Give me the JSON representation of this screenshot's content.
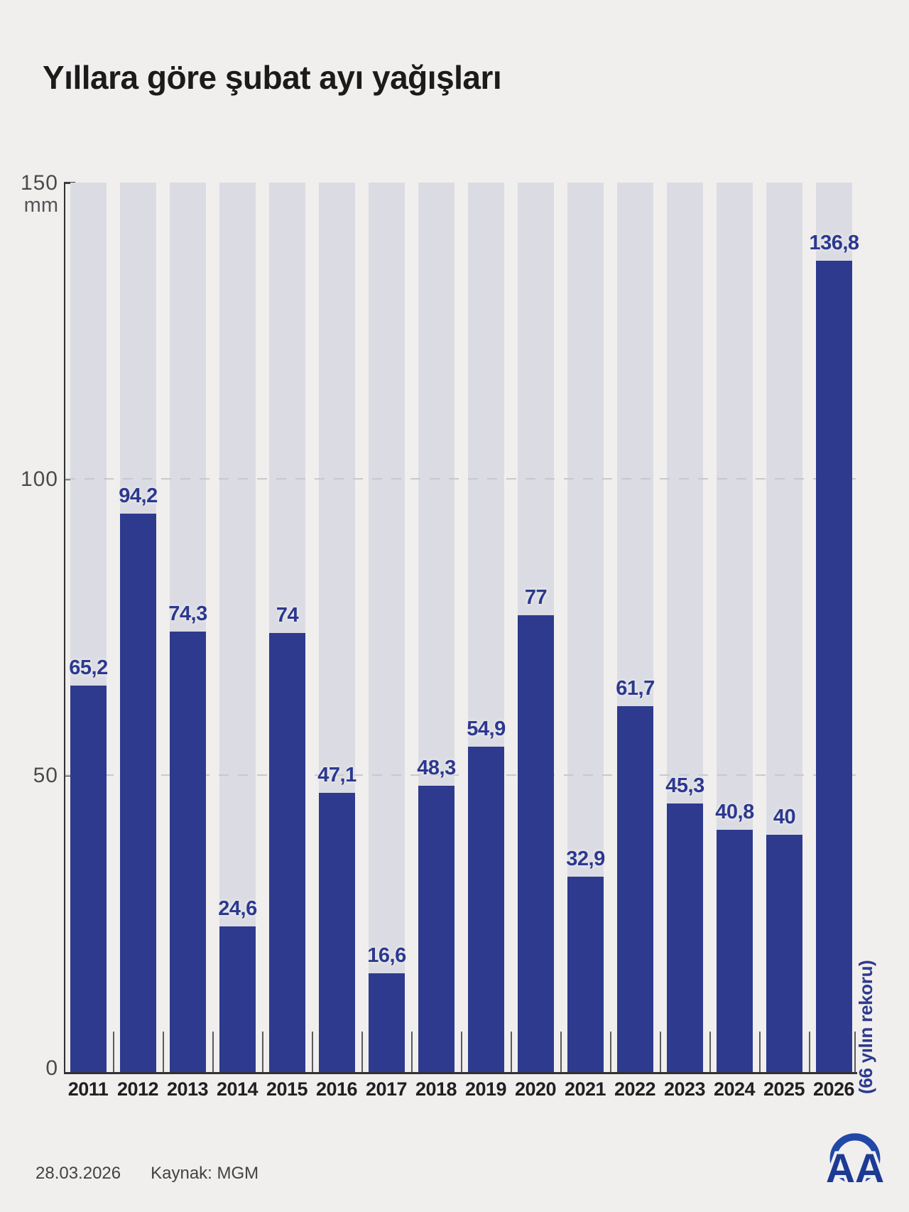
{
  "title": "Yıllara göre şubat ayı yağışları",
  "chart_data": {
    "type": "bar",
    "title": "Yıllara göre şubat ayı yağışları",
    "categories": [
      "2011",
      "2012",
      "2013",
      "2014",
      "2015",
      "2016",
      "2017",
      "2018",
      "2019",
      "2020",
      "2021",
      "2022",
      "2023",
      "2024",
      "2025",
      "2026"
    ],
    "values": [
      65.2,
      94.2,
      74.3,
      24.6,
      74,
      47.1,
      16.6,
      48.3,
      54.9,
      77,
      32.9,
      61.7,
      45.3,
      40.8,
      40,
      136.8
    ],
    "value_labels": [
      "65,2",
      "94,2",
      "74,3",
      "24,6",
      "74",
      "47,1",
      "16,6",
      "48,3",
      "54,9",
      "77",
      "32,9",
      "61,7",
      "45,3",
      "40,8",
      "40",
      "136,8"
    ],
    "xlabel": "",
    "ylabel": "mm",
    "ylim": [
      0,
      150
    ],
    "yticks": [
      0,
      50,
      100,
      150
    ],
    "ytick_labels": [
      "0",
      "50",
      "100",
      "150"
    ],
    "unit_label": "mm",
    "grid": "dashed horizontal lines at 50 and 100",
    "legend": "none",
    "annotation": "(66 yılın rekoru)",
    "annotation_target": "2026",
    "bar_color": "#2e3a8e",
    "track_color": "#dbdce3",
    "background_color": "#f0efed"
  },
  "y_axis": {
    "top_value": "150",
    "unit": "mm",
    "mid_value": "100",
    "low_value": "50",
    "zero_value": "0"
  },
  "annotation": {
    "text": "(66 yılın rekoru)"
  },
  "footer": {
    "date": "28.03.2026",
    "source": "Kaynak: MGM"
  },
  "logo": {
    "text": "AA",
    "color": "#2148a6"
  }
}
